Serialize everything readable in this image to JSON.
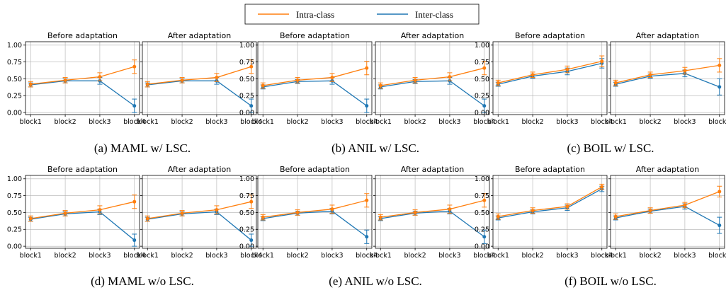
{
  "legend": {
    "intra_label": "Intra-class",
    "inter_label": "Inter-class"
  },
  "colors": {
    "intra": "#ff7f0e",
    "inter": "#1f77b4",
    "grid": "#b0b0b0"
  },
  "chart_data": [
    {
      "type": "line",
      "group": "a",
      "caption": "(a) MAML w/ LSC.",
      "title": "Before adaptation",
      "categories": [
        "block1",
        "block2",
        "block3",
        "block4"
      ],
      "ylim": [
        -0.03,
        1.05
      ],
      "yticks": [
        "0.00",
        "0.25",
        "0.50",
        "0.75",
        "1.00"
      ],
      "series": [
        {
          "name": "Intra-class",
          "values": [
            0.42,
            0.48,
            0.53,
            0.68
          ],
          "errors": [
            0.04,
            0.04,
            0.06,
            0.1
          ]
        },
        {
          "name": "Inter-class",
          "values": [
            0.41,
            0.47,
            0.47,
            0.1
          ],
          "errors": [
            0.03,
            0.03,
            0.05,
            0.1
          ]
        }
      ]
    },
    {
      "type": "line",
      "group": "a",
      "caption": "",
      "title": "After adaptation",
      "categories": [
        "block1",
        "block2",
        "block3",
        "block4"
      ],
      "ylim": [
        -0.03,
        1.05
      ],
      "yticks": [],
      "series": [
        {
          "name": "Intra-class",
          "values": [
            0.42,
            0.48,
            0.52,
            0.68
          ],
          "errors": [
            0.04,
            0.04,
            0.06,
            0.1
          ]
        },
        {
          "name": "Inter-class",
          "values": [
            0.41,
            0.47,
            0.47,
            0.1
          ],
          "errors": [
            0.03,
            0.03,
            0.05,
            0.1
          ]
        }
      ]
    },
    {
      "type": "line",
      "group": "b",
      "caption": "(b) ANIL w/ LSC.",
      "title": "Before adaptation",
      "categories": [
        "block1",
        "block2",
        "block3",
        "block4"
      ],
      "ylim": [
        -0.03,
        1.05
      ],
      "yticks": [
        "0.00",
        "0.25",
        "0.50",
        "0.75",
        "1.00"
      ],
      "series": [
        {
          "name": "Intra-class",
          "values": [
            0.4,
            0.48,
            0.52,
            0.66
          ],
          "errors": [
            0.04,
            0.04,
            0.06,
            0.1
          ]
        },
        {
          "name": "Inter-class",
          "values": [
            0.38,
            0.46,
            0.47,
            0.1
          ],
          "errors": [
            0.03,
            0.03,
            0.05,
            0.1
          ]
        }
      ]
    },
    {
      "type": "line",
      "group": "b",
      "caption": "",
      "title": "After adaptation",
      "categories": [
        "block1",
        "block2",
        "block3",
        "block4"
      ],
      "ylim": [
        -0.03,
        1.05
      ],
      "yticks": [],
      "series": [
        {
          "name": "Intra-class",
          "values": [
            0.4,
            0.48,
            0.53,
            0.66
          ],
          "errors": [
            0.04,
            0.04,
            0.06,
            0.1
          ]
        },
        {
          "name": "Inter-class",
          "values": [
            0.38,
            0.46,
            0.47,
            0.1
          ],
          "errors": [
            0.03,
            0.03,
            0.05,
            0.1
          ]
        }
      ]
    },
    {
      "type": "line",
      "group": "c",
      "caption": "(c) BOIL w/ LSC.",
      "title": "Before adaptation",
      "categories": [
        "block1",
        "block2",
        "block3",
        "block4"
      ],
      "ylim": [
        -0.03,
        1.05
      ],
      "yticks": [
        "0.00",
        "0.25",
        "0.50",
        "0.75",
        "1.00"
      ],
      "series": [
        {
          "name": "Intra-class",
          "values": [
            0.44,
            0.56,
            0.64,
            0.76
          ],
          "errors": [
            0.04,
            0.04,
            0.05,
            0.08
          ]
        },
        {
          "name": "Inter-class",
          "values": [
            0.42,
            0.54,
            0.61,
            0.73
          ],
          "errors": [
            0.03,
            0.03,
            0.05,
            0.07
          ]
        }
      ]
    },
    {
      "type": "line",
      "group": "c",
      "caption": "",
      "title": "After adaptation",
      "categories": [
        "block1",
        "block2",
        "block3",
        "block4"
      ],
      "ylim": [
        -0.03,
        1.05
      ],
      "yticks": [],
      "series": [
        {
          "name": "Intra-class",
          "values": [
            0.44,
            0.56,
            0.62,
            0.7
          ],
          "errors": [
            0.04,
            0.04,
            0.05,
            0.1
          ]
        },
        {
          "name": "Inter-class",
          "values": [
            0.42,
            0.54,
            0.58,
            0.38
          ],
          "errors": [
            0.03,
            0.03,
            0.05,
            0.12
          ]
        }
      ]
    },
    {
      "type": "line",
      "group": "d",
      "caption": "(d) MAML w/o LSC.",
      "title": "Before adaptation",
      "categories": [
        "block1",
        "block2",
        "block3",
        "block4"
      ],
      "ylim": [
        -0.03,
        1.05
      ],
      "yticks": [
        "0.00",
        "0.25",
        "0.50",
        "0.75",
        "1.00"
      ],
      "series": [
        {
          "name": "Intra-class",
          "values": [
            0.41,
            0.49,
            0.54,
            0.66
          ],
          "errors": [
            0.04,
            0.04,
            0.06,
            0.1
          ]
        },
        {
          "name": "Inter-class",
          "values": [
            0.4,
            0.48,
            0.51,
            0.09
          ],
          "errors": [
            0.03,
            0.03,
            0.04,
            0.09
          ]
        }
      ]
    },
    {
      "type": "line",
      "group": "d",
      "caption": "",
      "title": "After adaptation",
      "categories": [
        "block1",
        "block2",
        "block3",
        "block4"
      ],
      "ylim": [
        -0.03,
        1.05
      ],
      "yticks": [],
      "series": [
        {
          "name": "Intra-class",
          "values": [
            0.41,
            0.49,
            0.54,
            0.66
          ],
          "errors": [
            0.04,
            0.04,
            0.06,
            0.1
          ]
        },
        {
          "name": "Inter-class",
          "values": [
            0.4,
            0.48,
            0.51,
            0.09
          ],
          "errors": [
            0.03,
            0.03,
            0.04,
            0.09
          ]
        }
      ]
    },
    {
      "type": "line",
      "group": "e",
      "caption": "(e) ANIL w/o LSC.",
      "title": "Before adaptation",
      "categories": [
        "block1",
        "block2",
        "block3",
        "block4"
      ],
      "ylim": [
        -0.03,
        1.05
      ],
      "yticks": [
        "0.00",
        "0.25",
        "0.50",
        "0.75",
        "1.00"
      ],
      "series": [
        {
          "name": "Intra-class",
          "values": [
            0.43,
            0.5,
            0.55,
            0.68
          ],
          "errors": [
            0.04,
            0.04,
            0.06,
            0.1
          ]
        },
        {
          "name": "Inter-class",
          "values": [
            0.41,
            0.49,
            0.52,
            0.14
          ],
          "errors": [
            0.03,
            0.03,
            0.04,
            0.1
          ]
        }
      ]
    },
    {
      "type": "line",
      "group": "e",
      "caption": "",
      "title": "After adaptation",
      "categories": [
        "block1",
        "block2",
        "block3",
        "block4"
      ],
      "ylim": [
        -0.03,
        1.05
      ],
      "yticks": [],
      "series": [
        {
          "name": "Intra-class",
          "values": [
            0.43,
            0.5,
            0.55,
            0.68
          ],
          "errors": [
            0.04,
            0.04,
            0.06,
            0.1
          ]
        },
        {
          "name": "Inter-class",
          "values": [
            0.41,
            0.49,
            0.52,
            0.14
          ],
          "errors": [
            0.03,
            0.03,
            0.04,
            0.1
          ]
        }
      ]
    },
    {
      "type": "line",
      "group": "f",
      "caption": "(f) BOIL w/o LSC.",
      "title": "Before adaptation",
      "categories": [
        "block1",
        "block2",
        "block3",
        "block4"
      ],
      "ylim": [
        -0.03,
        1.05
      ],
      "yticks": [
        "0.00",
        "0.25",
        "0.50",
        "0.75",
        "1.00"
      ],
      "series": [
        {
          "name": "Intra-class",
          "values": [
            0.44,
            0.53,
            0.59,
            0.88
          ],
          "errors": [
            0.04,
            0.04,
            0.04,
            0.04
          ]
        },
        {
          "name": "Inter-class",
          "values": [
            0.42,
            0.51,
            0.57,
            0.85
          ],
          "errors": [
            0.03,
            0.03,
            0.04,
            0.04
          ]
        }
      ]
    },
    {
      "type": "line",
      "group": "f",
      "caption": "",
      "title": "After adaptation",
      "categories": [
        "block1",
        "block2",
        "block3",
        "block4"
      ],
      "ylim": [
        -0.03,
        1.05
      ],
      "yticks": [],
      "series": [
        {
          "name": "Intra-class",
          "values": [
            0.44,
            0.53,
            0.61,
            0.81
          ],
          "errors": [
            0.04,
            0.04,
            0.04,
            0.08
          ]
        },
        {
          "name": "Inter-class",
          "values": [
            0.42,
            0.52,
            0.59,
            0.31
          ],
          "errors": [
            0.03,
            0.03,
            0.04,
            0.12
          ]
        }
      ]
    }
  ]
}
